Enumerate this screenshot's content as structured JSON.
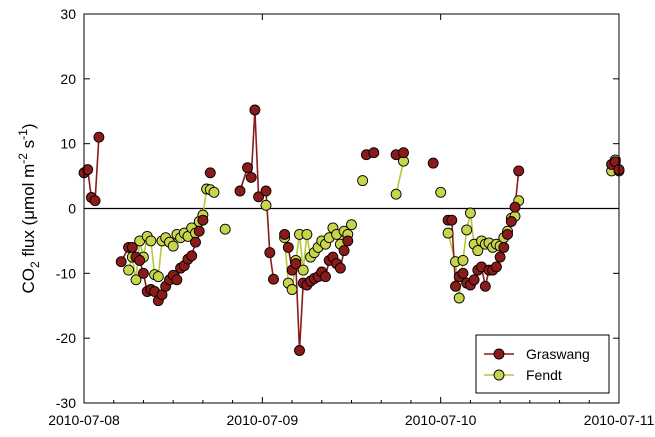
{
  "chart_data": {
    "type": "line",
    "title": "",
    "xlabel": "",
    "ylabel": {
      "prefix": "CO",
      "sub": "2",
      "middle": " flux (μmol m",
      "sup1": "-2",
      "middle2": " s",
      "sup2": "-1",
      "suffix": ")"
    },
    "xlim": [
      "2010-07-08T00:00",
      "2010-07-11T00:00"
    ],
    "ylim": [
      -30,
      30
    ],
    "yticks": [
      -30,
      -20,
      -10,
      0,
      10,
      20,
      30
    ],
    "xticks": [
      "2010-07-08",
      "2010-07-09",
      "2010-07-10",
      "2010-07-11"
    ],
    "zero_line": true,
    "grid": false,
    "legend_position": "bottom-right",
    "colors": {
      "Graswang_fill": "#8b1a1a",
      "Graswang_line": "#8b1a1a",
      "Fendt_fill": "#c8d44a",
      "Fendt_line": "#b8c83a"
    },
    "series": [
      {
        "name": "Graswang",
        "points": [
          [
            "2010-07-08T00:00",
            5.5
          ],
          [
            "2010-07-08T00:30",
            6.0
          ],
          [
            "2010-07-08T01:00",
            1.7
          ],
          [
            "2010-07-08T01:30",
            1.2
          ],
          [
            "2010-07-08T02:00",
            11.0
          ],
          null,
          [
            "2010-07-08T05:00",
            -8.2
          ],
          [
            "2010-07-08T06:00",
            -6.0
          ],
          [
            "2010-07-08T06:30",
            -6.0
          ],
          [
            "2010-07-08T07:00",
            -7.5
          ],
          [
            "2010-07-08T07:30",
            -8.0
          ],
          [
            "2010-07-08T08:00",
            -10.0
          ],
          [
            "2010-07-08T08:30",
            -12.8
          ],
          [
            "2010-07-08T09:00",
            -12.5
          ],
          [
            "2010-07-08T09:30",
            -12.8
          ],
          [
            "2010-07-08T10:00",
            -14.2
          ],
          [
            "2010-07-08T10:30",
            -13.3
          ],
          [
            "2010-07-08T11:00",
            -12.0
          ],
          [
            "2010-07-08T11:30",
            -11.0
          ],
          [
            "2010-07-08T12:00",
            -10.3
          ],
          [
            "2010-07-08T12:30",
            -11.0
          ],
          [
            "2010-07-08T13:00",
            -9.2
          ],
          [
            "2010-07-08T13:30",
            -8.8
          ],
          [
            "2010-07-08T14:00",
            -7.8
          ],
          [
            "2010-07-08T14:30",
            -7.3
          ],
          [
            "2010-07-08T15:00",
            -5.2
          ],
          [
            "2010-07-08T15:30",
            -3.5
          ],
          [
            "2010-07-08T16:00",
            -1.8
          ],
          null,
          [
            "2010-07-08T17:00",
            5.5
          ],
          null,
          [
            "2010-07-08T21:00",
            2.7
          ],
          [
            "2010-07-08T22:00",
            6.3
          ],
          [
            "2010-07-08T22:30",
            4.8
          ],
          [
            "2010-07-08T23:00",
            15.2
          ],
          [
            "2010-07-08T23:30",
            1.8
          ],
          [
            "2010-07-09T00:30",
            2.7
          ],
          [
            "2010-07-09T01:00",
            -6.8
          ],
          [
            "2010-07-09T01:30",
            -10.9
          ],
          null,
          [
            "2010-07-09T03:00",
            -4.0
          ],
          [
            "2010-07-09T03:30",
            -6.0
          ],
          [
            "2010-07-09T04:00",
            -9.5
          ],
          [
            "2010-07-09T04:30",
            -8.5
          ],
          [
            "2010-07-09T05:00",
            -21.9
          ],
          [
            "2010-07-09T05:30",
            -11.5
          ],
          [
            "2010-07-09T06:00",
            -11.8
          ],
          [
            "2010-07-09T06:30",
            -11.2
          ],
          [
            "2010-07-09T07:00",
            -10.8
          ],
          [
            "2010-07-09T07:30",
            -10.5
          ],
          [
            "2010-07-09T08:00",
            -9.8
          ],
          [
            "2010-07-09T08:30",
            -10.5
          ],
          [
            "2010-07-09T09:00",
            -8.0
          ],
          [
            "2010-07-09T09:30",
            -7.5
          ],
          [
            "2010-07-09T10:00",
            -8.5
          ],
          [
            "2010-07-09T10:30",
            -9.2
          ],
          [
            "2010-07-09T11:00",
            -6.5
          ],
          [
            "2010-07-09T11:30",
            -5.0
          ],
          null,
          [
            "2010-07-09T14:00",
            8.3
          ],
          [
            "2010-07-09T15:00",
            8.6
          ],
          null,
          [
            "2010-07-09T18:00",
            8.3
          ],
          [
            "2010-07-09T19:00",
            8.6
          ],
          null,
          [
            "2010-07-09T23:00",
            7.0
          ],
          null,
          [
            "2010-07-10T01:00",
            -1.8
          ],
          [
            "2010-07-10T01:30",
            -1.8
          ],
          [
            "2010-07-10T02:00",
            -12.0
          ],
          [
            "2010-07-10T02:30",
            -10.5
          ],
          [
            "2010-07-10T03:00",
            -10.0
          ],
          [
            "2010-07-10T03:30",
            -11.5
          ],
          [
            "2010-07-10T04:00",
            -11.8
          ],
          [
            "2010-07-10T04:30",
            -11.0
          ],
          [
            "2010-07-10T05:00",
            -9.5
          ],
          [
            "2010-07-10T05:30",
            -9.0
          ],
          [
            "2010-07-10T06:00",
            -12.0
          ],
          [
            "2010-07-10T06:30",
            -9.5
          ],
          [
            "2010-07-10T07:00",
            -9.5
          ],
          [
            "2010-07-10T07:30",
            -9.0
          ],
          [
            "2010-07-10T08:00",
            -7.5
          ],
          [
            "2010-07-10T08:30",
            -6.0
          ],
          [
            "2010-07-10T09:00",
            -4.0
          ],
          [
            "2010-07-10T09:30",
            -2.0
          ],
          [
            "2010-07-10T10:00",
            0.2
          ],
          [
            "2010-07-10T10:30",
            5.8
          ],
          null,
          [
            "2010-07-10T23:00",
            6.8
          ],
          [
            "2010-07-10T23:30",
            7.2
          ],
          [
            "2010-07-11T00:00",
            6.0
          ]
        ]
      },
      {
        "name": "Fendt",
        "points": [
          [
            "2010-07-08T06:00",
            -9.5
          ],
          [
            "2010-07-08T06:30",
            -7.5
          ],
          [
            "2010-07-08T07:00",
            -11.0
          ],
          [
            "2010-07-08T07:30",
            -5.0
          ],
          [
            "2010-07-08T08:00",
            -7.5
          ],
          [
            "2010-07-08T08:30",
            -4.3
          ],
          [
            "2010-07-08T09:00",
            -5.0
          ],
          [
            "2010-07-08T09:30",
            -10.2
          ],
          [
            "2010-07-08T10:00",
            -10.5
          ],
          [
            "2010-07-08T10:30",
            -5.0
          ],
          [
            "2010-07-08T11:00",
            -4.5
          ],
          [
            "2010-07-08T11:30",
            -5.2
          ],
          [
            "2010-07-08T12:00",
            -5.8
          ],
          [
            "2010-07-08T12:30",
            -4.0
          ],
          [
            "2010-07-08T13:00",
            -4.5
          ],
          [
            "2010-07-08T13:30",
            -3.8
          ],
          [
            "2010-07-08T14:00",
            -4.3
          ],
          [
            "2010-07-08T14:30",
            -3.0
          ],
          [
            "2010-07-08T15:00",
            -3.8
          ],
          [
            "2010-07-08T15:30",
            -2.0
          ],
          [
            "2010-07-08T16:00",
            -1.0
          ],
          [
            "2010-07-08T16:30",
            3.0
          ],
          [
            "2010-07-08T17:00",
            2.9
          ],
          [
            "2010-07-08T17:30",
            2.5
          ],
          null,
          [
            "2010-07-08T19:00",
            -3.2
          ],
          null,
          [
            "2010-07-09T00:30",
            0.5
          ],
          null,
          [
            "2010-07-09T03:00",
            -4.5
          ],
          [
            "2010-07-09T03:30",
            -11.5
          ],
          [
            "2010-07-09T04:00",
            -12.5
          ],
          [
            "2010-07-09T04:30",
            -8.0
          ],
          [
            "2010-07-09T05:00",
            -4.0
          ],
          [
            "2010-07-09T05:30",
            -9.5
          ],
          [
            "2010-07-09T06:00",
            -4.0
          ],
          [
            "2010-07-09T06:30",
            -7.5
          ],
          [
            "2010-07-09T07:00",
            -6.8
          ],
          [
            "2010-07-09T07:30",
            -6.0
          ],
          [
            "2010-07-09T08:00",
            -5.0
          ],
          [
            "2010-07-09T08:30",
            -5.5
          ],
          [
            "2010-07-09T09:00",
            -4.5
          ],
          [
            "2010-07-09T09:30",
            -3.0
          ],
          [
            "2010-07-09T10:00",
            -4.0
          ],
          [
            "2010-07-09T10:30",
            -5.5
          ],
          [
            "2010-07-09T11:00",
            -3.5
          ],
          [
            "2010-07-09T11:30",
            -4.0
          ],
          [
            "2010-07-09T12:00",
            -2.5
          ],
          null,
          [
            "2010-07-09T13:30",
            4.3
          ],
          null,
          [
            "2010-07-09T18:00",
            2.2
          ],
          [
            "2010-07-09T19:00",
            7.3
          ],
          null,
          [
            "2010-07-10T00:00",
            2.5
          ],
          null,
          [
            "2010-07-10T01:00",
            -3.8
          ],
          [
            "2010-07-10T02:00",
            -8.2
          ],
          [
            "2010-07-10T02:30",
            -13.8
          ],
          [
            "2010-07-10T03:00",
            -8.0
          ],
          [
            "2010-07-10T03:30",
            -3.3
          ],
          [
            "2010-07-10T04:00",
            -0.7
          ],
          [
            "2010-07-10T04:30",
            -5.5
          ],
          [
            "2010-07-10T05:00",
            -6.5
          ],
          [
            "2010-07-10T05:30",
            -5.0
          ],
          [
            "2010-07-10T06:00",
            -5.5
          ],
          [
            "2010-07-10T06:30",
            -5.3
          ],
          [
            "2010-07-10T07:00",
            -6.0
          ],
          [
            "2010-07-10T07:30",
            -5.5
          ],
          [
            "2010-07-10T08:00",
            -5.8
          ],
          [
            "2010-07-10T08:30",
            -4.5
          ],
          [
            "2010-07-10T09:00",
            -3.5
          ],
          [
            "2010-07-10T09:30",
            -1.5
          ],
          [
            "2010-07-10T10:00",
            -1.2
          ],
          [
            "2010-07-10T10:30",
            1.2
          ],
          null,
          [
            "2010-07-10T23:00",
            5.8
          ],
          [
            "2010-07-10T23:30",
            7.5
          ],
          [
            "2010-07-11T00:00",
            5.8
          ]
        ]
      }
    ]
  }
}
